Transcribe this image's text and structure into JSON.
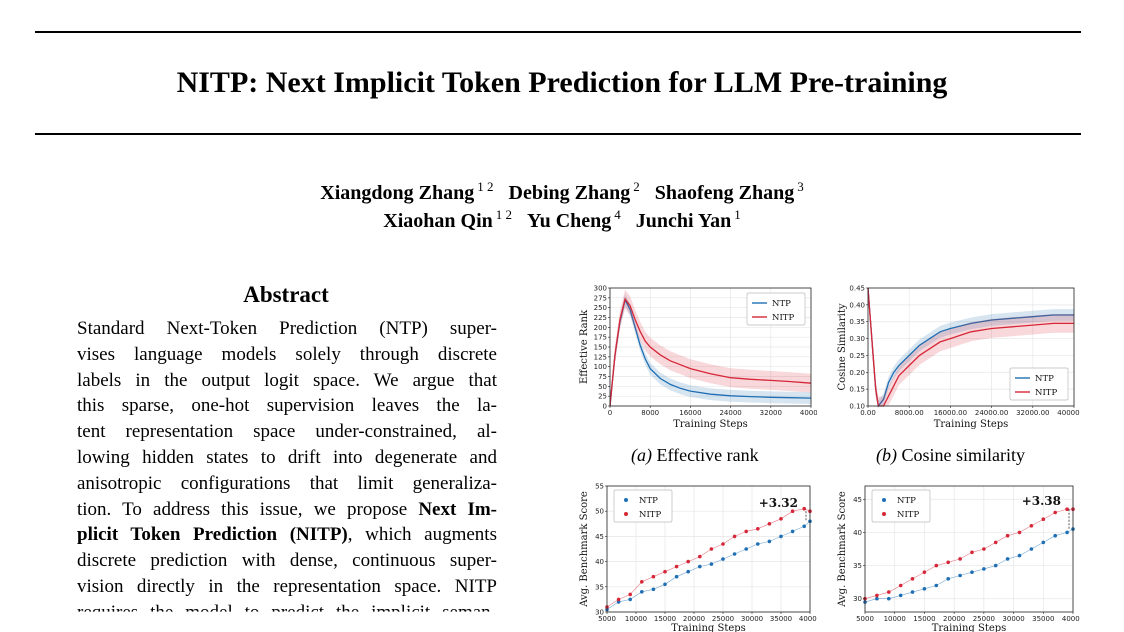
{
  "title": "NITP: Next Implicit Token Prediction for LLM Pre-training",
  "authors": [
    {
      "name": "Xiangdong Zhang",
      "aff": "1 2"
    },
    {
      "name": "Debing Zhang",
      "aff": "2"
    },
    {
      "name": "Shaofeng Zhang",
      "aff": "3"
    },
    {
      "name": "Xiaohan Qin",
      "aff": "1 2"
    },
    {
      "name": "Yu Cheng",
      "aff": "4"
    },
    {
      "name": "Junchi Yan",
      "aff": "1"
    }
  ],
  "abstract": {
    "heading": "Abstract",
    "lines": [
      "Standard Next-Token Prediction (NTP) super-",
      "vises language models solely through discrete",
      "labels in the output logit space. We argue that",
      "this sparse, one-hot supervision leaves the la-",
      "tent representation space under-constrained, al-",
      "lowing hidden states to drift into degenerate and",
      "anisotropic configurations that limit generaliza-",
      "tion. To address this issue, we propose ",
      "discrete prediction with dense, continuous super-",
      "vision directly in the representation space. NITP",
      "requires the model to predict the implicit seman-"
    ],
    "bold_phrase_1": "Next Im-",
    "bold_phrase_2": "plicit Token Prediction (NITP)",
    "line8_rest": ", which augments"
  },
  "figure": {
    "captions": {
      "a_label": "(a)",
      "a_text": " Effective rank",
      "b_label": "(b)",
      "b_text": " Cosine similarity"
    }
  },
  "colors": {
    "ntp": "#1f6fb4",
    "nitp": "#d62738"
  },
  "chart_data": [
    {
      "id": "effective-rank",
      "type": "line",
      "xlabel": "Training Steps",
      "ylabel": "Effective Rank",
      "xlim": [
        0,
        40000
      ],
      "ylim": [
        0,
        300
      ],
      "xticks": [
        0,
        8000,
        16000,
        24000,
        32000,
        40000
      ],
      "yticks": [
        0,
        25,
        50,
        75,
        100,
        125,
        150,
        175,
        200,
        225,
        250,
        275,
        300
      ],
      "legend": "top-right",
      "grid": true,
      "band": true,
      "series": [
        {
          "name": "NTP",
          "x": [
            0,
            1000,
            2000,
            3000,
            4000,
            5000,
            6000,
            7000,
            8000,
            10000,
            12000,
            14000,
            16000,
            20000,
            24000,
            28000,
            32000,
            36000,
            40000
          ],
          "y": [
            0,
            130,
            215,
            270,
            245,
            200,
            155,
            120,
            95,
            70,
            55,
            45,
            38,
            30,
            26,
            24,
            22,
            21,
            20
          ]
        },
        {
          "name": "NITP",
          "x": [
            0,
            1000,
            2000,
            3000,
            4000,
            5000,
            6000,
            7000,
            8000,
            10000,
            12000,
            14000,
            16000,
            20000,
            24000,
            28000,
            32000,
            36000,
            40000
          ],
          "y": [
            0,
            130,
            220,
            272,
            255,
            220,
            190,
            165,
            150,
            130,
            115,
            105,
            95,
            82,
            72,
            68,
            65,
            62,
            58
          ]
        }
      ]
    },
    {
      "id": "cosine-similarity",
      "type": "line",
      "xlabel": "Training Steps",
      "ylabel": "Cosine Similarity",
      "xlim": [
        0,
        40000
      ],
      "ylim": [
        0.1,
        0.45
      ],
      "xticks": [
        0,
        8000,
        16000,
        24000,
        32000,
        40000
      ],
      "yticks": [
        0.1,
        0.15,
        0.2,
        0.25,
        0.3,
        0.35,
        0.4,
        0.45
      ],
      "legend": "bottom-right",
      "grid": true,
      "band": true,
      "series": [
        {
          "name": "NTP",
          "x": [
            0,
            1000,
            1500,
            2000,
            3000,
            4000,
            5000,
            6000,
            8000,
            10000,
            12000,
            14000,
            16000,
            20000,
            24000,
            28000,
            32000,
            36000,
            40000
          ],
          "y": [
            0.45,
            0.25,
            0.15,
            0.1,
            0.12,
            0.17,
            0.2,
            0.22,
            0.25,
            0.28,
            0.3,
            0.32,
            0.33,
            0.345,
            0.355,
            0.36,
            0.365,
            0.37,
            0.37
          ]
        },
        {
          "name": "NITP",
          "x": [
            0,
            1000,
            1500,
            2000,
            3000,
            4000,
            5000,
            6000,
            8000,
            10000,
            12000,
            14000,
            16000,
            20000,
            24000,
            28000,
            32000,
            36000,
            40000
          ],
          "y": [
            0.45,
            0.25,
            0.15,
            0.1,
            0.1,
            0.13,
            0.16,
            0.19,
            0.22,
            0.25,
            0.27,
            0.29,
            0.3,
            0.32,
            0.33,
            0.335,
            0.34,
            0.345,
            0.345
          ]
        }
      ]
    },
    {
      "id": "benchmark-left",
      "type": "scatter",
      "xlabel": "Training Steps",
      "ylabel": "Avg. Benchmark Score",
      "xlim": [
        5000,
        40000
      ],
      "ylim": [
        30,
        55
      ],
      "xticks": [
        5000,
        10000,
        15000,
        20000,
        25000,
        30000,
        35000,
        40000
      ],
      "yticks": [
        30,
        35,
        40,
        45,
        50,
        55
      ],
      "legend": "top-left",
      "grid": true,
      "annotation": "+3.32",
      "series": [
        {
          "name": "NTP",
          "x": [
            5000,
            7000,
            9000,
            11000,
            13000,
            15000,
            17000,
            19000,
            21000,
            23000,
            25000,
            27000,
            29000,
            31000,
            33000,
            35000,
            37000,
            39000,
            40000
          ],
          "y": [
            30.5,
            32,
            32.5,
            34,
            34.5,
            35.5,
            37,
            38,
            39,
            39.5,
            40.5,
            41.5,
            42.5,
            43.5,
            44,
            45,
            46,
            47,
            48
          ]
        },
        {
          "name": "NITP",
          "x": [
            5000,
            7000,
            9000,
            11000,
            13000,
            15000,
            17000,
            19000,
            21000,
            23000,
            25000,
            27000,
            29000,
            31000,
            33000,
            35000,
            37000,
            39000,
            40000
          ],
          "y": [
            31,
            32.5,
            33.5,
            36,
            37,
            38,
            39,
            40,
            41,
            42.5,
            43.5,
            45,
            46,
            46.5,
            47.5,
            48.5,
            50,
            50.5,
            50
          ]
        }
      ]
    },
    {
      "id": "benchmark-right",
      "type": "scatter",
      "xlabel": "Training Steps",
      "ylabel": "Avg. Benchmark Score",
      "xlim": [
        5000,
        40000
      ],
      "ylim": [
        28,
        47
      ],
      "xticks": [
        5000,
        10000,
        15000,
        20000,
        25000,
        30000,
        35000,
        40000
      ],
      "yticks": [
        30,
        35,
        40,
        45
      ],
      "legend": "top-left",
      "grid": true,
      "annotation": "+3.38",
      "series": [
        {
          "name": "NTP",
          "x": [
            5000,
            7000,
            9000,
            11000,
            13000,
            15000,
            17000,
            19000,
            21000,
            23000,
            25000,
            27000,
            29000,
            31000,
            33000,
            35000,
            37000,
            39000,
            40000
          ],
          "y": [
            29.5,
            30,
            30,
            30.5,
            31,
            31.5,
            32,
            33,
            33.5,
            34,
            34.5,
            35,
            36,
            36.5,
            37.5,
            38.5,
            39.5,
            40,
            40.5
          ]
        },
        {
          "name": "NITP",
          "x": [
            5000,
            7000,
            9000,
            11000,
            13000,
            15000,
            17000,
            19000,
            21000,
            23000,
            25000,
            27000,
            29000,
            31000,
            33000,
            35000,
            37000,
            39000,
            40000
          ],
          "y": [
            30,
            30.5,
            31,
            32,
            33,
            34,
            35,
            35.5,
            36,
            37,
            37.5,
            38.5,
            39.5,
            40,
            41,
            42,
            43,
            43.5,
            43.5
          ]
        }
      ]
    }
  ]
}
